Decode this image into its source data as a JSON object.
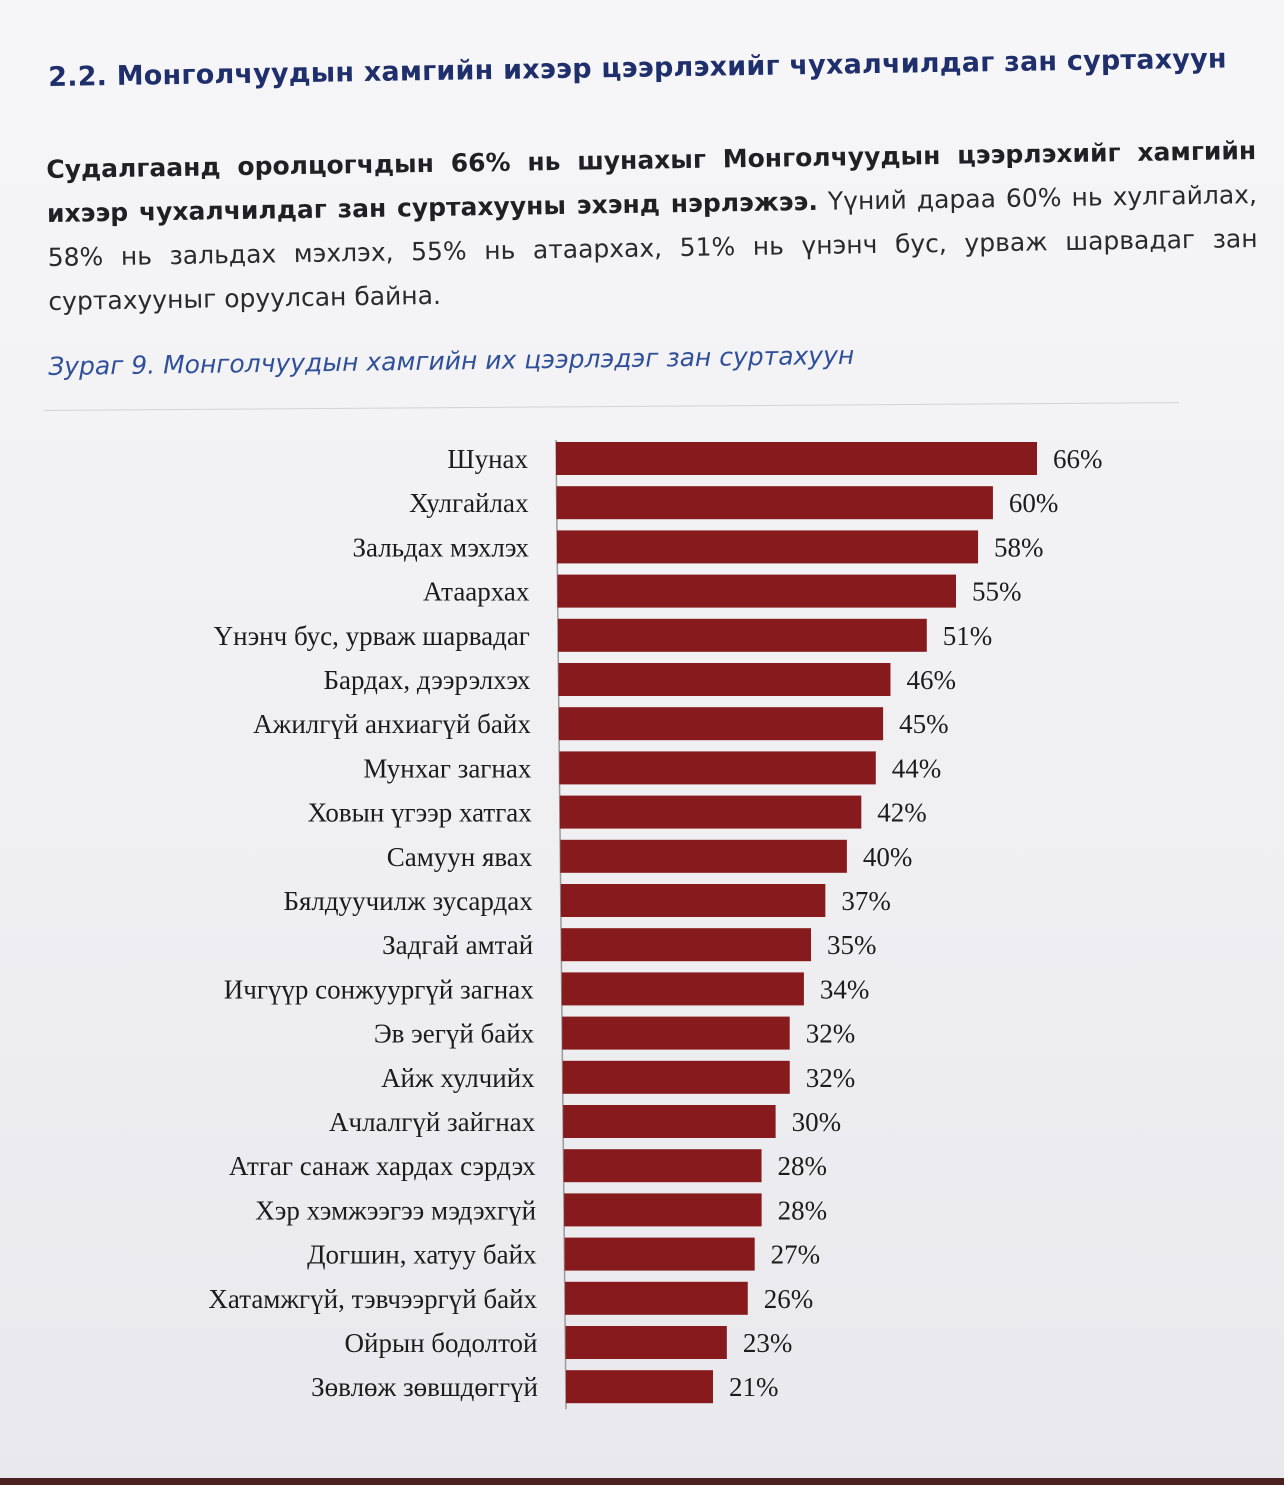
{
  "section": {
    "title": "2.2. Монголчуудын хамгийн ихээр цээрлэхийг чухалчилдаг зан суртахуун"
  },
  "paragraph": {
    "bold": "Судалгаанд оролцогчдын 66% нь шунахыг Монголчуудын цээрлэхийг хамгийн ихээр чухалчилдаг зан суртахууны эхэнд нэрлэжээ.",
    "normal": " Үүний дараа 60% нь хулгайлах, 58% нь зальдах мэхлэх, 55% нь атаархах, 51% нь үнэнч бус, урваж шарвадаг зан суртахууныг оруулсан байна."
  },
  "figure": {
    "caption": "Зураг 9. Монголчуудын хамгийн их цээрлэдэг зан суртахуун"
  },
  "chart_data": {
    "type": "bar",
    "orientation": "horizontal",
    "bar_color": "#861a1c",
    "xlim": [
      0,
      66
    ],
    "categories": [
      "Шунах",
      "Хулгайлах",
      "Зальдах мэхлэх",
      "Атаархах",
      "Үнэнч бус, урваж шарвадаг",
      "Бардах, дээрэлхэх",
      "Ажилгүй анхиагүй байх",
      "Мунхаг загнах",
      "Ховын үгээр хатгах",
      "Самуун явах",
      "Бялдуучилж зусардах",
      "Задгай амтай",
      "Ичгүүр сонжуургүй загнах",
      "Эв эегүй байх",
      "Айж хулчийх",
      "Ачлалгүй зайгнах",
      "Атгаг санаж хардах сэрдэх",
      "Хэр хэмжээгээ мэдэхгүй",
      "Догшин, хатуу байх",
      "Хатамжгүй, тэвчээргүй байх",
      "Ойрын бодолтой",
      "Зөвлөж зөвшдөггүй"
    ],
    "values": [
      66,
      60,
      58,
      55,
      51,
      46,
      45,
      44,
      42,
      40,
      37,
      35,
      34,
      32,
      32,
      30,
      28,
      28,
      27,
      26,
      23,
      21
    ],
    "value_labels": [
      "66%",
      "60%",
      "58%",
      "55%",
      "51%",
      "46%",
      "45%",
      "44%",
      "42%",
      "40%",
      "37%",
      "35%",
      "34%",
      "32%",
      "32%",
      "30%",
      "28%",
      "28%",
      "27%",
      "26%",
      "23%",
      "21%"
    ]
  }
}
